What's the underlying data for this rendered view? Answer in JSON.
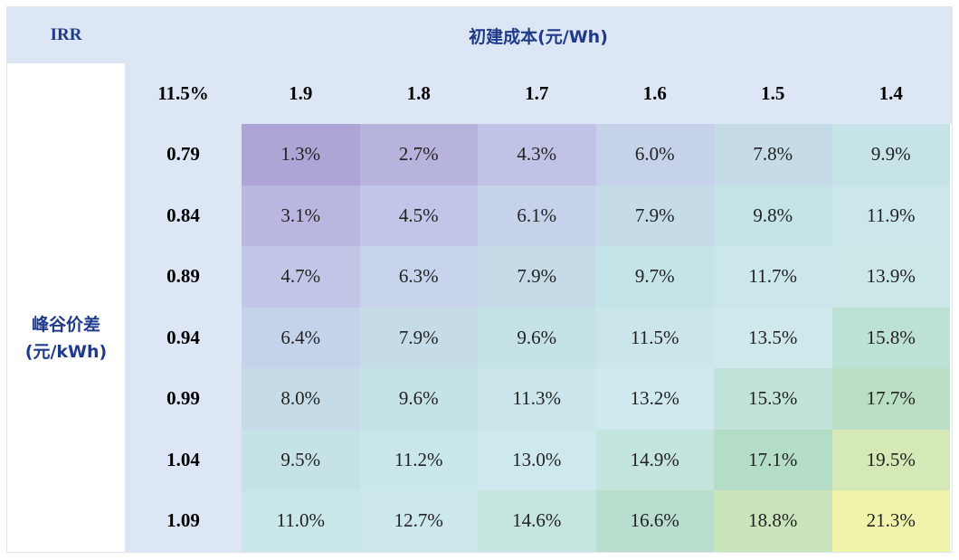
{
  "chart_data": {
    "type": "heatmap",
    "corner_label": "IRR",
    "x_title": "初建成本(元/Wh)",
    "y_title_line1": "峰谷价差",
    "y_title_line2": "(元/kWh)",
    "base_value_label": "11.5%",
    "x_categories": [
      "1.9",
      "1.8",
      "1.7",
      "1.6",
      "1.5",
      "1.4"
    ],
    "y_categories": [
      "0.79",
      "0.84",
      "0.89",
      "0.94",
      "0.99",
      "1.04",
      "1.09"
    ],
    "values": [
      [
        1.3,
        2.7,
        4.3,
        6.0,
        7.8,
        9.9
      ],
      [
        3.1,
        4.5,
        6.1,
        7.9,
        9.8,
        11.9
      ],
      [
        4.7,
        6.3,
        7.9,
        9.7,
        11.7,
        13.9
      ],
      [
        6.4,
        7.9,
        9.6,
        11.5,
        13.5,
        15.8
      ],
      [
        8.0,
        9.6,
        11.3,
        13.2,
        15.3,
        17.7
      ],
      [
        9.5,
        11.2,
        13.0,
        14.9,
        17.1,
        19.5
      ],
      [
        11.0,
        12.7,
        14.6,
        16.6,
        18.8,
        21.3
      ]
    ],
    "value_labels": [
      [
        "1.3%",
        "2.7%",
        "4.3%",
        "6.0%",
        "7.8%",
        "9.9%"
      ],
      [
        "3.1%",
        "4.5%",
        "6.1%",
        "7.9%",
        "9.8%",
        "11.9%"
      ],
      [
        "4.7%",
        "6.3%",
        "7.9%",
        "9.7%",
        "11.7%",
        "13.9%"
      ],
      [
        "6.4%",
        "7.9%",
        "9.6%",
        "11.5%",
        "13.5%",
        "15.8%"
      ],
      [
        "8.0%",
        "9.6%",
        "11.3%",
        "13.2%",
        "15.3%",
        "17.7%"
      ],
      [
        "9.5%",
        "11.2%",
        "13.0%",
        "14.9%",
        "17.1%",
        "19.5%"
      ],
      [
        "11.0%",
        "12.7%",
        "14.6%",
        "16.6%",
        "18.8%",
        "21.3%"
      ]
    ],
    "unit": "%",
    "color_scale": [
      "#aea5d6",
      "#c6cdeb",
      "#c4e3e6",
      "#cfe9ee",
      "#b3dcc6",
      "#f0f3aa"
    ]
  },
  "colors": {
    "header_band": "#dde6f4",
    "title_color": "#1f3a8a",
    "frame_border": "#dfe3ee"
  }
}
